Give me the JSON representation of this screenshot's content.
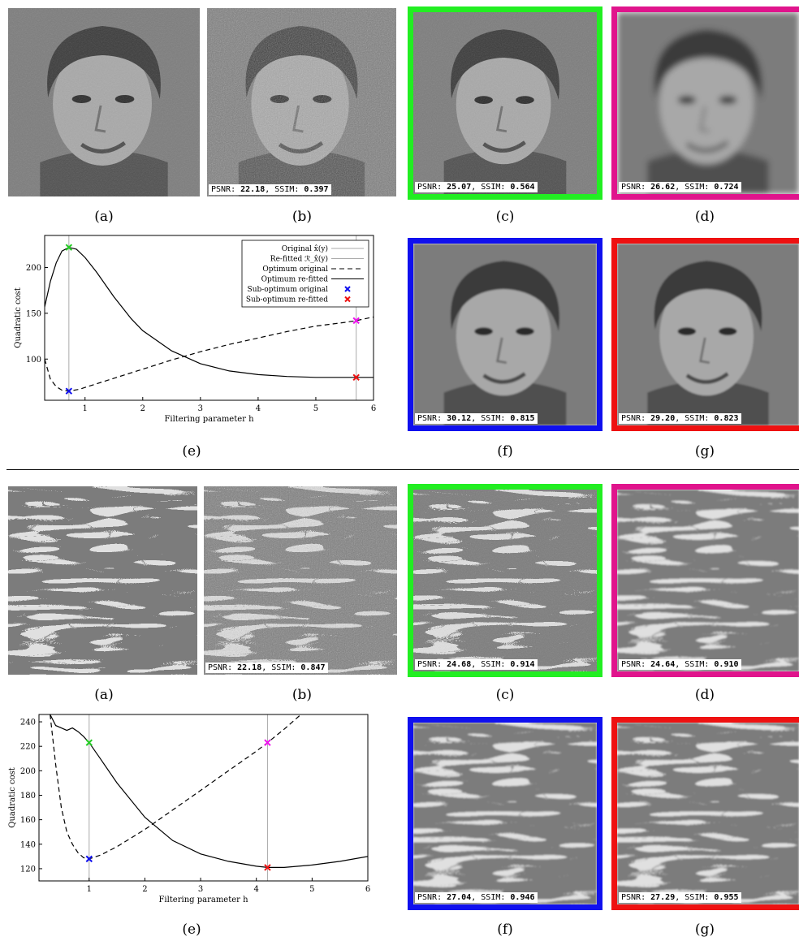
{
  "figure1": {
    "captions": {
      "a": "(a)",
      "b": "(b)",
      "c": "(c)",
      "d": "(d)",
      "e": "(e)",
      "f": "(f)",
      "g": "(g)"
    },
    "metrics": {
      "b": {
        "psnr": "22.18",
        "ssim": "0.397"
      },
      "c": {
        "psnr": "25.07",
        "ssim": "0.564"
      },
      "d": {
        "psnr": "26.62",
        "ssim": "0.724"
      },
      "f": {
        "psnr": "30.12",
        "ssim": "0.815"
      },
      "g": {
        "psnr": "29.20",
        "ssim": "0.823"
      }
    },
    "frame_colors": {
      "c": "#22ee22",
      "d": "#e0148c",
      "f": "#1010ee",
      "g": "#ee1111"
    }
  },
  "figure2": {
    "captions": {
      "a": "(a)",
      "b": "(b)",
      "c": "(c)",
      "d": "(d)",
      "e": "(e)",
      "f": "(f)",
      "g": "(g)"
    },
    "metrics": {
      "b": {
        "psnr": "22.18",
        "ssim": "0.847"
      },
      "c": {
        "psnr": "24.68",
        "ssim": "0.914"
      },
      "d": {
        "psnr": "24.64",
        "ssim": "0.910"
      },
      "f": {
        "psnr": "27.04",
        "ssim": "0.946"
      },
      "g": {
        "psnr": "27.29",
        "ssim": "0.955"
      }
    },
    "frame_colors": {
      "c": "#22ee22",
      "d": "#e0148c",
      "f": "#1010ee",
      "g": "#ee1111"
    }
  },
  "labels": {
    "psnr": "PSNR: ",
    "ssim": ", SSIM: "
  },
  "chart_data": [
    {
      "type": "line",
      "xlabel": "Filtering parameter h",
      "ylabel": "Quadratic cost",
      "xlim": [
        0.3,
        6
      ],
      "ylim": [
        55,
        235
      ],
      "xticks": [
        1,
        2,
        3,
        4,
        5,
        6
      ],
      "yticks": [
        100,
        150,
        200
      ],
      "legend_position": "top-right",
      "legend": [
        "Original x̂(y)",
        "Re-fitted ℛ_x̂(y)",
        "Optimum original",
        "Optimum re-fitted",
        "Sub-optimum original",
        "Sub-optimum re-fitted"
      ],
      "vlines": [
        0.72,
        5.7
      ],
      "series": [
        {
          "name": "Optimum original",
          "style": "dashed",
          "x": [
            0.3,
            0.4,
            0.5,
            0.6,
            0.72,
            0.9,
            1.0,
            1.5,
            2.0,
            2.5,
            3.0,
            3.5,
            4.0,
            4.5,
            5.0,
            5.5,
            5.7,
            6.0
          ],
          "y": [
            100,
            78,
            70,
            66,
            65,
            67,
            69,
            79,
            89,
            99,
            108,
            116,
            123,
            130,
            136,
            140,
            142,
            146
          ]
        },
        {
          "name": "Optimum re-fitted",
          "style": "solid",
          "x": [
            0.3,
            0.4,
            0.5,
            0.6,
            0.72,
            0.85,
            1.0,
            1.2,
            1.5,
            1.8,
            2.0,
            2.5,
            3.0,
            3.5,
            4.0,
            4.5,
            5.0,
            5.5,
            5.7,
            6.0
          ],
          "y": [
            157,
            185,
            205,
            218,
            222,
            220,
            211,
            195,
            168,
            144,
            131,
            109,
            95,
            87,
            83,
            81,
            80,
            80,
            80,
            80
          ]
        }
      ],
      "markers": [
        {
          "name": "Sub-optimum re-fitted at optimum original h",
          "x": 0.72,
          "y": 222,
          "color": "#22cc22"
        },
        {
          "name": "Optimum original",
          "x": 0.72,
          "y": 65,
          "color": "#1010ee"
        },
        {
          "name": "Sub-optimum original at optimum re-fitted h",
          "x": 5.7,
          "y": 142,
          "color": "#ee11ee"
        },
        {
          "name": "Optimum re-fitted",
          "x": 5.7,
          "y": 80,
          "color": "#ee1111"
        }
      ]
    },
    {
      "type": "line",
      "xlabel": "Filtering parameter h",
      "ylabel": "Quadratic cost",
      "xlim": [
        0.1,
        6
      ],
      "ylim": [
        110,
        246
      ],
      "xticks": [
        1,
        2,
        3,
        4,
        5,
        6
      ],
      "yticks": [
        120,
        140,
        160,
        180,
        200,
        220,
        240
      ],
      "vlines": [
        1.0,
        4.2
      ],
      "series": [
        {
          "name": "Optimum original",
          "style": "dashed",
          "x": [
            0.3,
            0.4,
            0.5,
            0.6,
            0.7,
            0.8,
            0.9,
            1.0,
            1.2,
            1.5,
            2.0,
            2.5,
            3.0,
            3.5,
            4.0,
            4.2,
            4.5,
            4.8
          ],
          "y": [
            246,
            205,
            170,
            150,
            140,
            133,
            129,
            128,
            131,
            138,
            152,
            168,
            184,
            200,
            216,
            223,
            234,
            246
          ]
        },
        {
          "name": "Optimum re-fitted",
          "style": "solid",
          "x": [
            0.3,
            0.4,
            0.5,
            0.6,
            0.7,
            0.8,
            0.9,
            1.0,
            1.2,
            1.5,
            2.0,
            2.5,
            3.0,
            3.5,
            4.0,
            4.2,
            4.5,
            5.0,
            5.5,
            6.0
          ],
          "y": [
            246,
            237,
            235,
            233,
            235,
            232,
            228,
            223,
            210,
            190,
            162,
            143,
            132,
            126,
            122,
            121,
            121,
            123,
            126,
            130
          ]
        }
      ],
      "markers": [
        {
          "name": "Sub-optimum re-fitted at optimum original h",
          "x": 1.0,
          "y": 223,
          "color": "#22cc22"
        },
        {
          "name": "Optimum original",
          "x": 1.0,
          "y": 128,
          "color": "#1010ee"
        },
        {
          "name": "Sub-optimum original at optimum re-fitted h",
          "x": 4.2,
          "y": 223,
          "color": "#ee11ee"
        },
        {
          "name": "Optimum re-fitted",
          "x": 4.2,
          "y": 121,
          "color": "#ee1111"
        }
      ]
    }
  ]
}
